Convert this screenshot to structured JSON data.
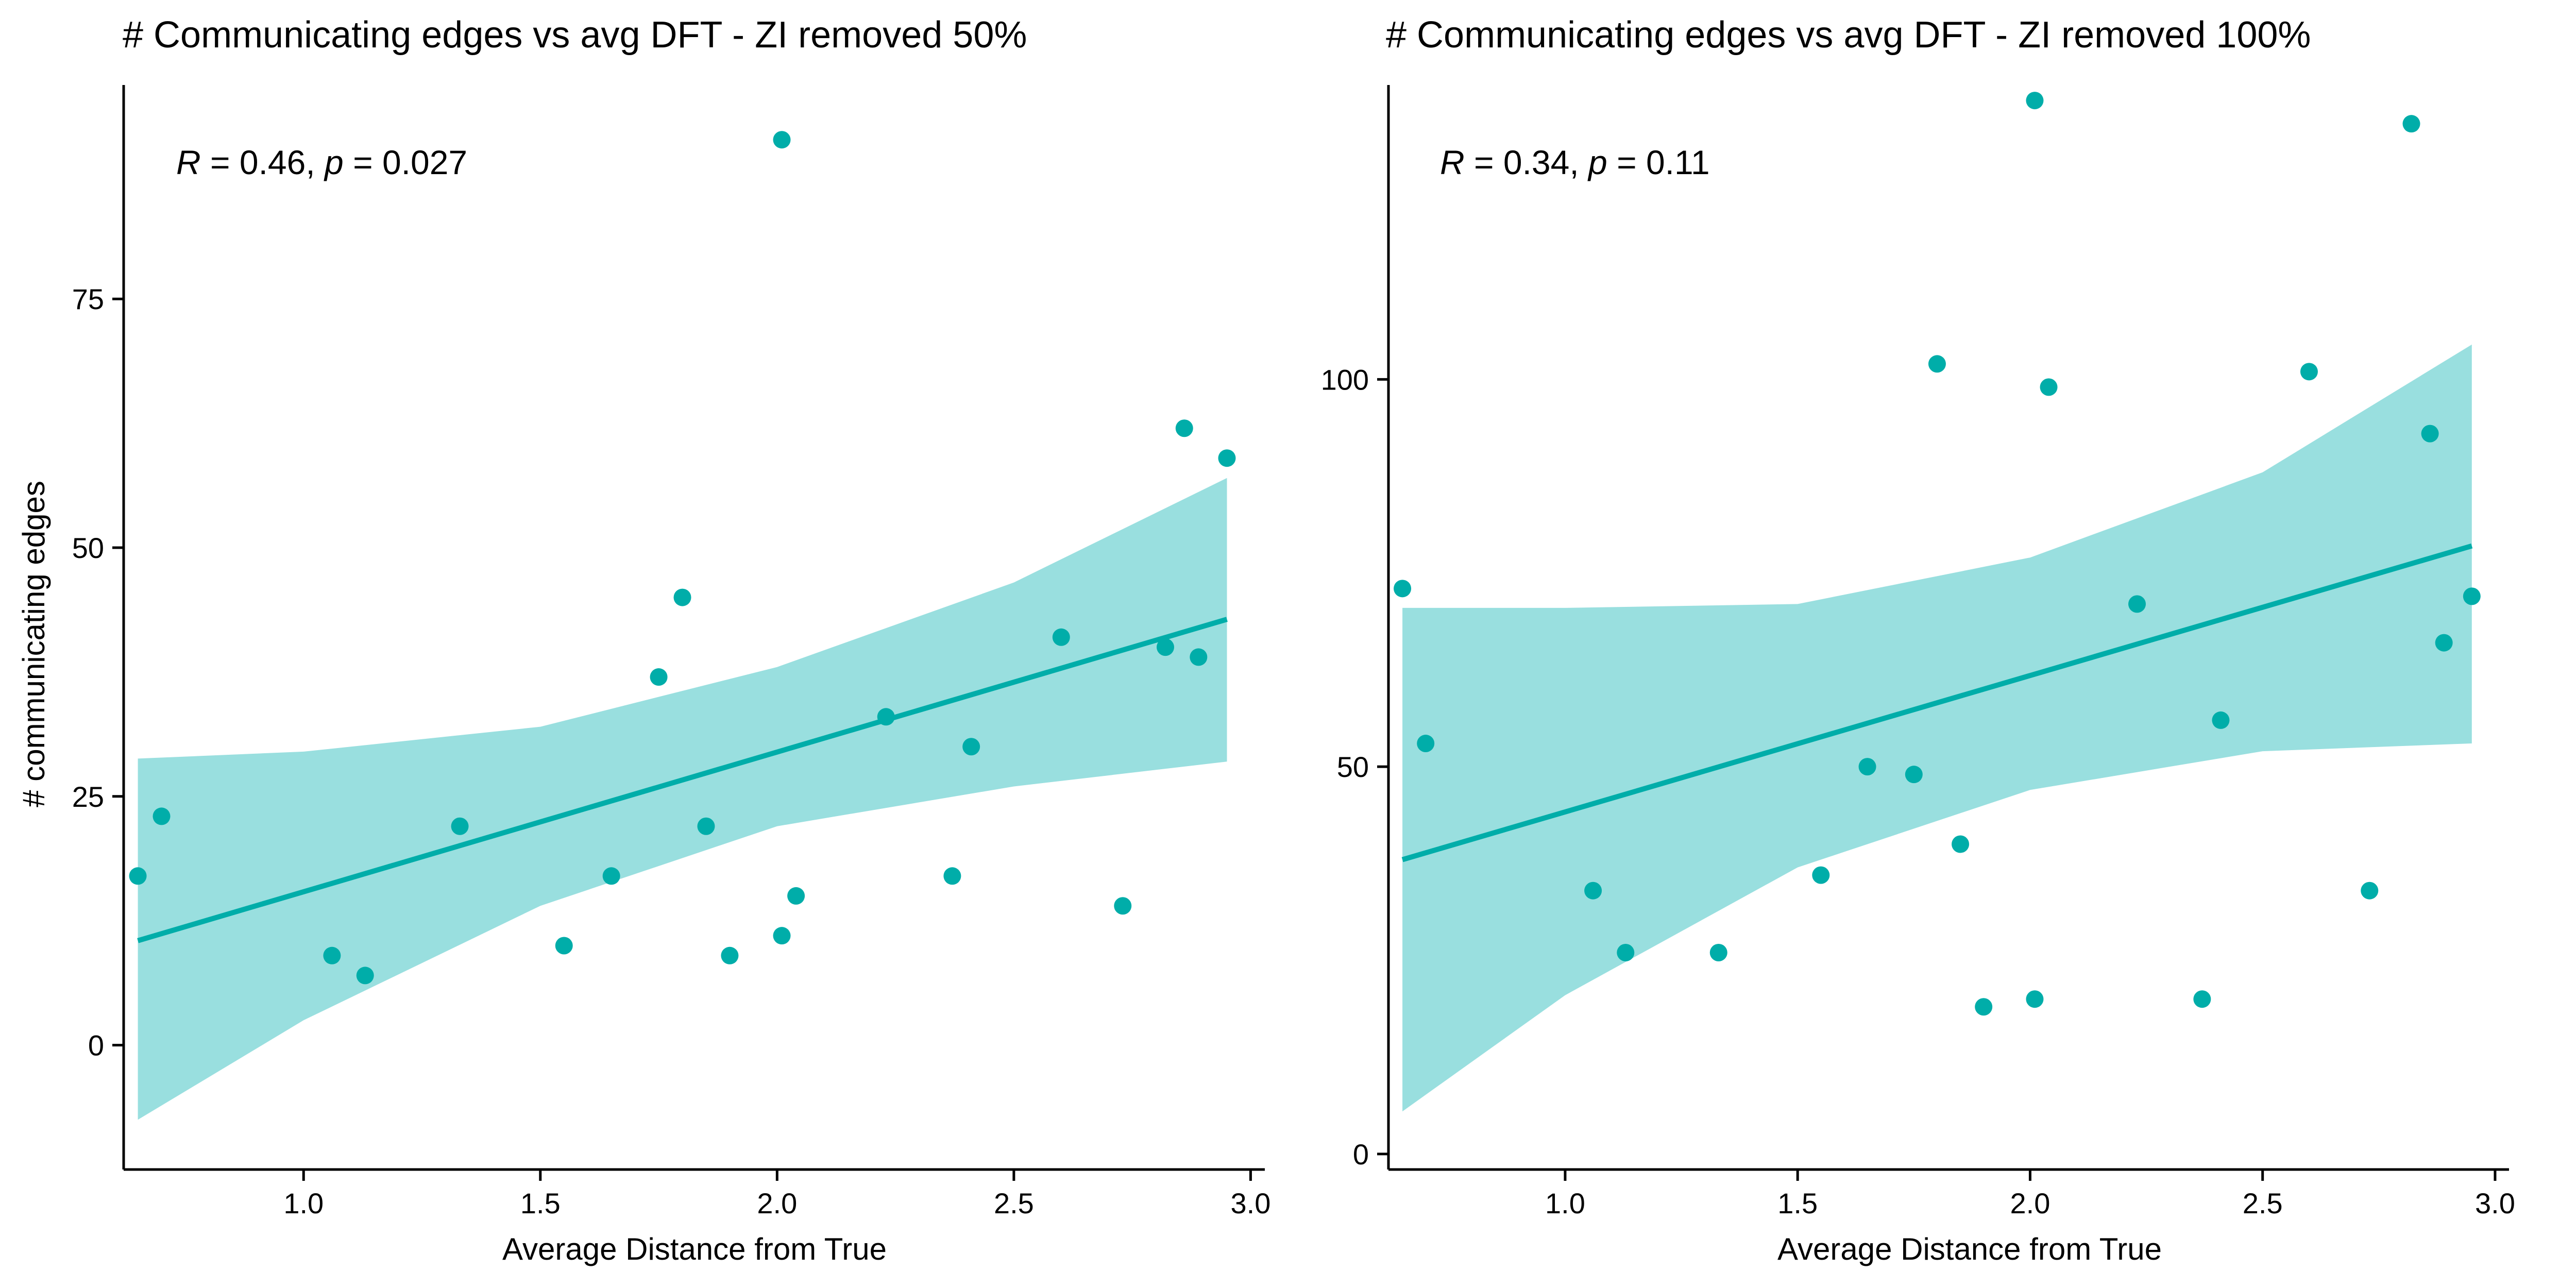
{
  "chart_data": [
    {
      "type": "scatter",
      "title": "# Communicating edges vs avg DFT - ZI removed 50%",
      "xlabel": "Average Distance from True",
      "ylabel": "# communicating edges",
      "xlim": [
        0.62,
        3.03
      ],
      "ylim": [
        -12.5,
        96.5
      ],
      "xticks": [
        1.0,
        1.5,
        2.0,
        2.5,
        3.0
      ],
      "xtick_labels": [
        "1.0",
        "1.5",
        "2.0",
        "2.5",
        "3.0"
      ],
      "yticks": [
        0,
        25,
        50,
        75
      ],
      "ytick_labels": [
        "0",
        "25",
        "50",
        "75"
      ],
      "stat": {
        "r_label": "R",
        "r_value": " = 0.46, ",
        "p_label": "p",
        "p_value": " = 0.027"
      },
      "points": [
        {
          "x": 0.65,
          "y": 17
        },
        {
          "x": 0.7,
          "y": 23
        },
        {
          "x": 1.06,
          "y": 9
        },
        {
          "x": 1.13,
          "y": 7
        },
        {
          "x": 1.33,
          "y": 22
        },
        {
          "x": 1.55,
          "y": 10
        },
        {
          "x": 1.65,
          "y": 17
        },
        {
          "x": 1.75,
          "y": 37
        },
        {
          "x": 1.8,
          "y": 45
        },
        {
          "x": 1.85,
          "y": 22
        },
        {
          "x": 1.9,
          "y": 9
        },
        {
          "x": 2.01,
          "y": 11
        },
        {
          "x": 2.01,
          "y": 91
        },
        {
          "x": 2.04,
          "y": 15
        },
        {
          "x": 2.23,
          "y": 33
        },
        {
          "x": 2.37,
          "y": 17
        },
        {
          "x": 2.41,
          "y": 30
        },
        {
          "x": 2.6,
          "y": 41
        },
        {
          "x": 2.73,
          "y": 14
        },
        {
          "x": 2.82,
          "y": 40
        },
        {
          "x": 2.86,
          "y": 62
        },
        {
          "x": 2.89,
          "y": 39
        },
        {
          "x": 2.95,
          "y": 59
        }
      ],
      "fit_line": {
        "x": [
          0.65,
          2.95
        ],
        "y": [
          10.5,
          42.8
        ]
      },
      "confidence_band": {
        "x": [
          0.65,
          1.0,
          1.5,
          2.0,
          2.5,
          2.95
        ],
        "lower": [
          -7.5,
          2.5,
          14.0,
          22.0,
          26.0,
          28.5
        ],
        "upper": [
          28.8,
          29.5,
          32.0,
          38.0,
          46.5,
          57.0
        ]
      },
      "colors": {
        "point": "#00ADA9",
        "line": "#00ADA9",
        "band": "#99DFDF"
      }
    },
    {
      "type": "scatter",
      "title": "# Communicating edges vs avg DFT - ZI removed 100%",
      "xlabel": "Average Distance from True",
      "ylabel": "",
      "xlim": [
        0.62,
        3.03
      ],
      "ylim": [
        -2,
        138
      ],
      "xticks": [
        1.0,
        1.5,
        2.0,
        2.5,
        3.0
      ],
      "xtick_labels": [
        "1.0",
        "1.5",
        "2.0",
        "2.5",
        "3.0"
      ],
      "yticks": [
        0,
        50,
        100
      ],
      "ytick_labels": [
        "0",
        "50",
        "100"
      ],
      "stat": {
        "r_label": "R",
        "r_value": " = 0.34, ",
        "p_label": "p",
        "p_value": " = 0.11"
      },
      "points": [
        {
          "x": 0.65,
          "y": 73
        },
        {
          "x": 0.7,
          "y": 53
        },
        {
          "x": 1.06,
          "y": 34
        },
        {
          "x": 1.13,
          "y": 26
        },
        {
          "x": 1.33,
          "y": 26
        },
        {
          "x": 1.55,
          "y": 36
        },
        {
          "x": 1.65,
          "y": 50
        },
        {
          "x": 1.75,
          "y": 49
        },
        {
          "x": 1.8,
          "y": 102
        },
        {
          "x": 1.85,
          "y": 40
        },
        {
          "x": 1.9,
          "y": 19
        },
        {
          "x": 2.01,
          "y": 20
        },
        {
          "x": 2.01,
          "y": 136
        },
        {
          "x": 2.04,
          "y": 99
        },
        {
          "x": 2.23,
          "y": 71
        },
        {
          "x": 2.37,
          "y": 20
        },
        {
          "x": 2.41,
          "y": 56
        },
        {
          "x": 2.6,
          "y": 101
        },
        {
          "x": 2.73,
          "y": 34
        },
        {
          "x": 2.82,
          "y": 133
        },
        {
          "x": 2.86,
          "y": 93
        },
        {
          "x": 2.89,
          "y": 66
        },
        {
          "x": 2.95,
          "y": 72
        }
      ],
      "fit_line": {
        "x": [
          0.65,
          2.95
        ],
        "y": [
          38,
          78.5
        ]
      },
      "confidence_band": {
        "x": [
          0.65,
          1.0,
          1.5,
          2.0,
          2.5,
          2.95
        ],
        "lower": [
          5.5,
          20.5,
          37.0,
          47.0,
          52.0,
          53.0
        ],
        "upper": [
          70.5,
          70.5,
          71.0,
          77.0,
          88.0,
          104.5
        ]
      },
      "colors": {
        "point": "#00ADA9",
        "line": "#00ADA9",
        "band": "#99DFDF"
      }
    }
  ]
}
